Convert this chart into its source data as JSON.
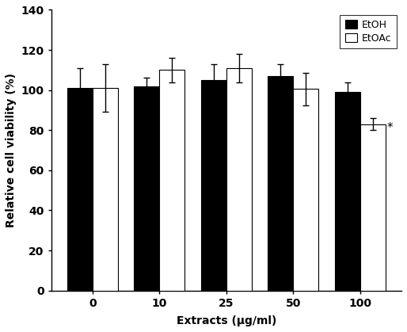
{
  "categories": [
    "0",
    "10",
    "25",
    "50",
    "100"
  ],
  "etoh_values": [
    101,
    102,
    105,
    107,
    99
  ],
  "etoac_values": [
    101,
    110,
    111,
    100.5,
    83
  ],
  "etoh_errors": [
    10,
    4,
    8,
    6,
    5
  ],
  "etoac_errors": [
    12,
    6,
    7,
    8,
    3
  ],
  "ylabel": "Relative cell viability (%)",
  "xlabel": "Extracts (μg/ml)",
  "ylim": [
    0,
    140
  ],
  "yticks": [
    0,
    20,
    40,
    60,
    80,
    100,
    120,
    140
  ],
  "legend_labels": [
    "EtOH",
    "EtOAc"
  ],
  "etoh_color": "#000000",
  "etoac_color": "#ffffff",
  "bar_width": 0.38,
  "bar_edge_color": "#000000",
  "asterisk_label": "*",
  "asterisk_group_index": 4,
  "figsize": [
    5.14,
    4.19
  ],
  "dpi": 100
}
